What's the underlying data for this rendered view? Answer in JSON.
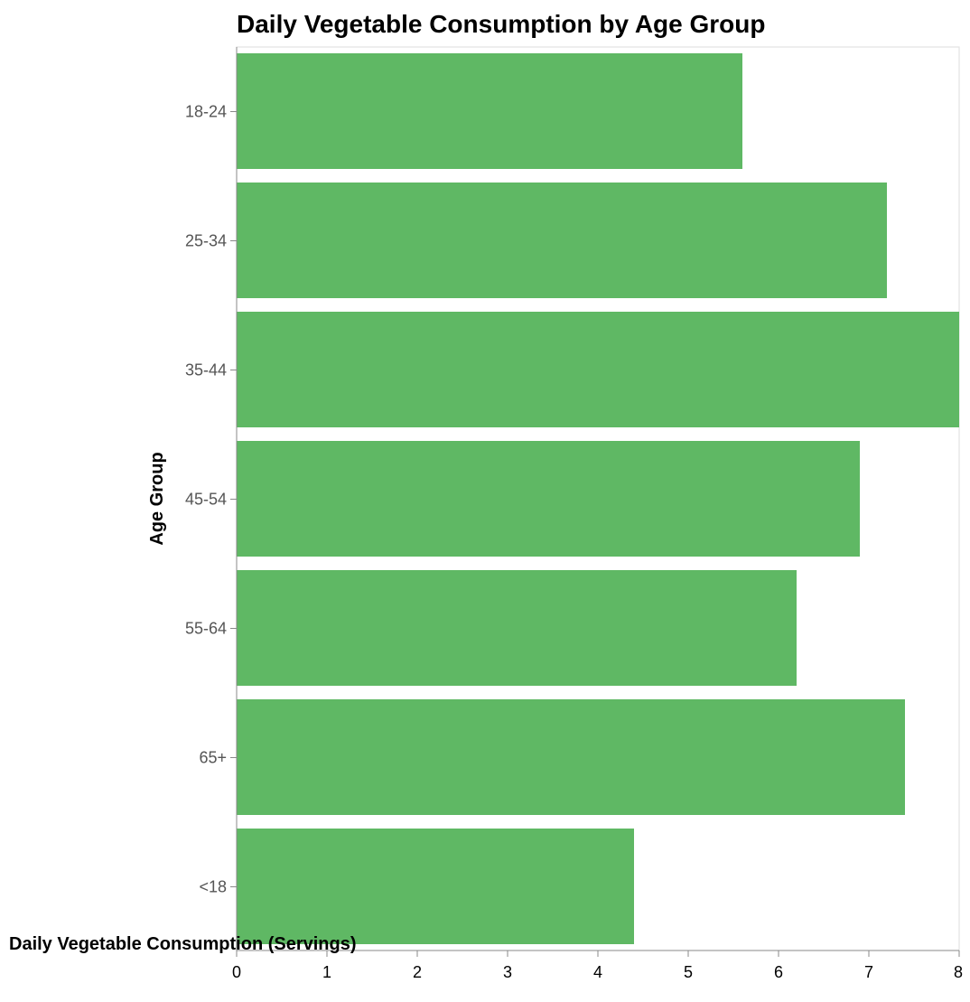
{
  "chart_data": {
    "type": "bar",
    "orientation": "horizontal",
    "title": "Daily Vegetable Consumption by Age Group",
    "xlabel": "Daily Vegetable Consumption (Servings)",
    "ylabel": "Age Group",
    "categories": [
      "18-24",
      "25-34",
      "35-44",
      "45-54",
      "55-64",
      "65+",
      "<18"
    ],
    "values": [
      5.6,
      7.2,
      8.0,
      6.9,
      6.2,
      7.4,
      4.4
    ],
    "xlim": [
      0,
      8
    ],
    "xticks": [
      "0",
      "1",
      "2",
      "3",
      "4",
      "5",
      "6",
      "7",
      "8"
    ],
    "grid": false,
    "bar_color": "#5fb864"
  }
}
